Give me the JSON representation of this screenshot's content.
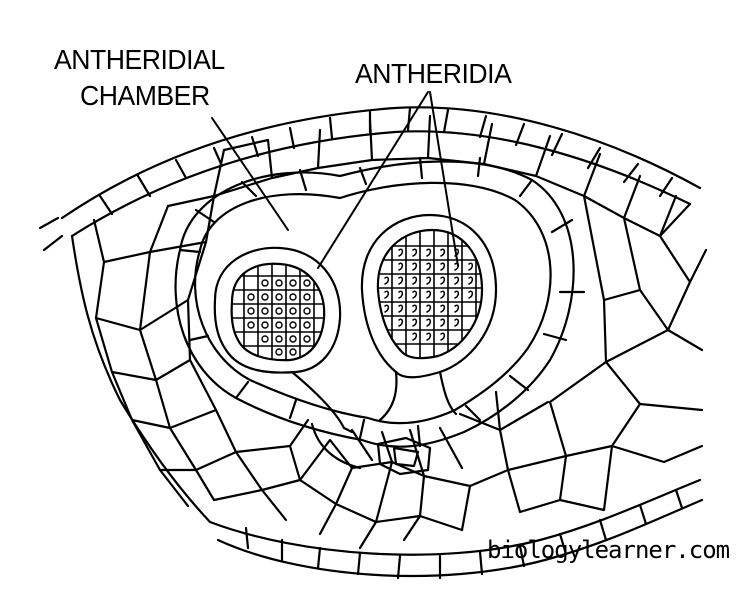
{
  "labels": {
    "chamber_line1": "ANTHERIDIAL",
    "chamber_line2": "CHAMBER",
    "antheridia": "ANTHERIDIA"
  },
  "watermark": "biologylearner.com",
  "colors": {
    "ink": "#000000",
    "background": "#ffffff"
  }
}
